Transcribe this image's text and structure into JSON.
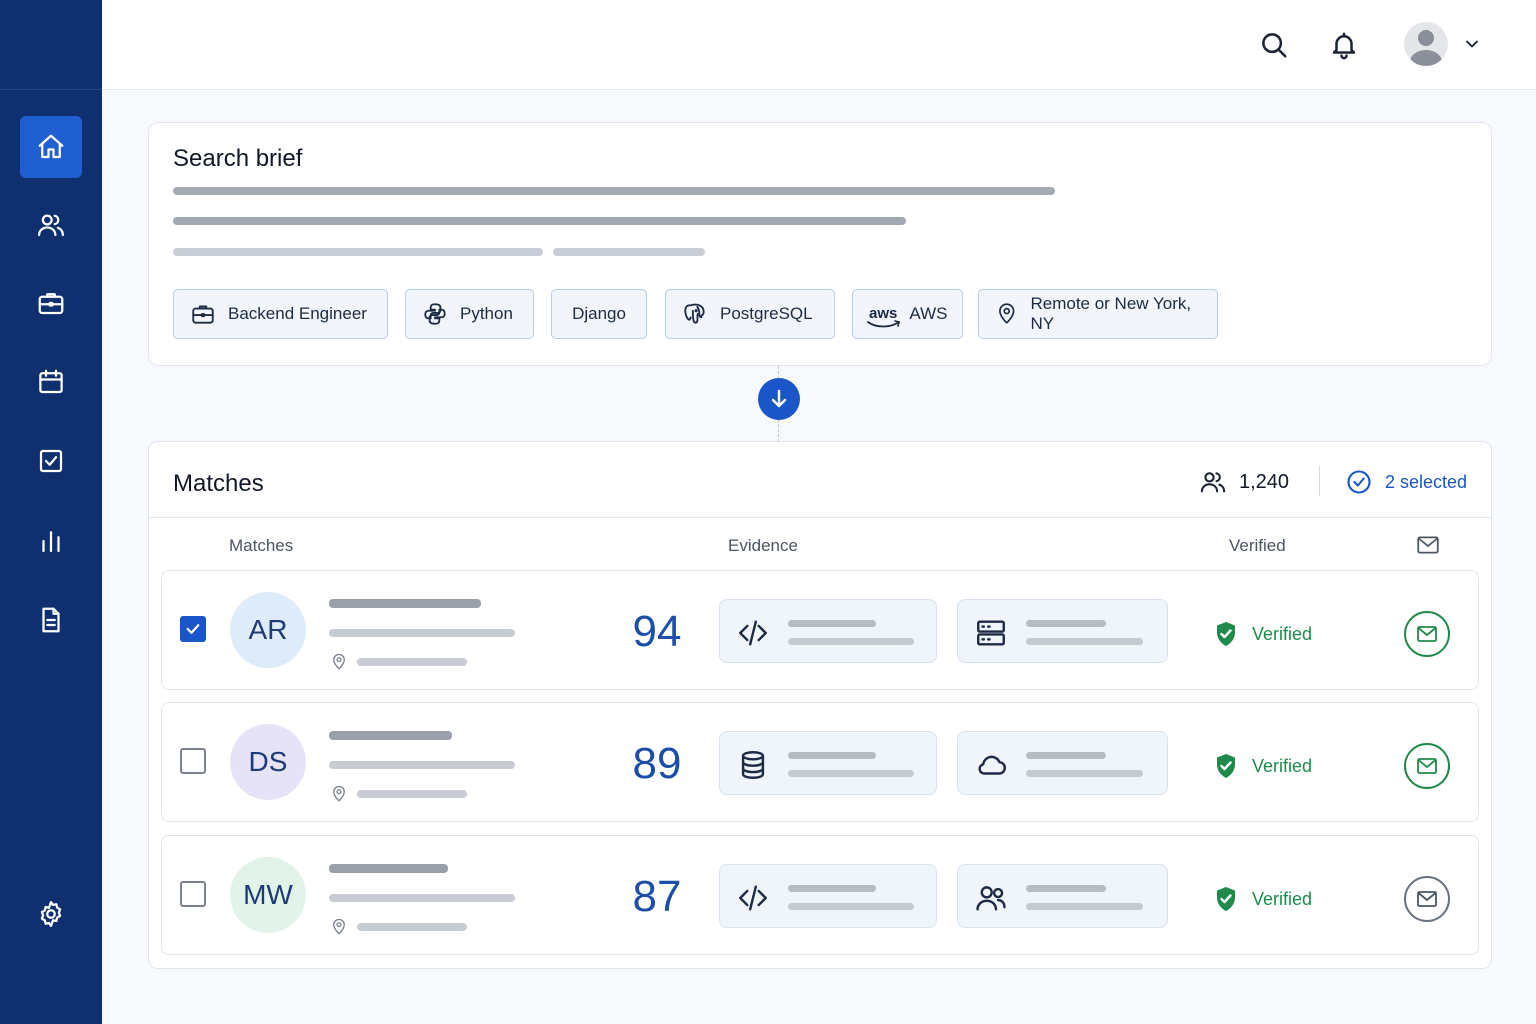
{
  "sidebar": {
    "items": [
      {
        "name": "home",
        "icon": "home-icon",
        "active": true
      },
      {
        "name": "candidates",
        "icon": "users-icon",
        "active": false
      },
      {
        "name": "jobs",
        "icon": "briefcase-icon",
        "active": false
      },
      {
        "name": "calendar",
        "icon": "calendar-icon",
        "active": false
      },
      {
        "name": "tasks",
        "icon": "checkbox-icon",
        "active": false
      },
      {
        "name": "analytics",
        "icon": "bar-chart-icon",
        "active": false
      },
      {
        "name": "documents",
        "icon": "document-icon",
        "active": false
      },
      {
        "name": "settings",
        "icon": "gear-icon",
        "active": false
      }
    ]
  },
  "header": {
    "icons": [
      "search-icon",
      "bell-icon",
      "avatar",
      "chevron-down-icon"
    ]
  },
  "brief": {
    "title": "Search brief",
    "chips": [
      {
        "label": "Backend Engineer",
        "icon": "briefcase-icon"
      },
      {
        "label": "Python",
        "icon": "python-icon"
      },
      {
        "label": "Django",
        "icon": ""
      },
      {
        "label": "PostgreSQL",
        "icon": "postgresql-icon"
      },
      {
        "label": "AWS",
        "icon": "aws-icon",
        "logo_text": "aws"
      },
      {
        "label": "Remote or New York, NY",
        "icon": "location-pin-icon"
      }
    ]
  },
  "matches": {
    "title": "Matches",
    "total": "1,240",
    "selected": "2 selected",
    "columns": {
      "matches": "Matches",
      "evidence": "Evidence",
      "verified": "Verified"
    },
    "rows": [
      {
        "initials": "AR",
        "score": "94",
        "checked": true,
        "avatar_bg": "#deebfa",
        "evidence_icons": [
          "code-icon",
          "server-icon"
        ],
        "verified": "Verified",
        "mail_active": true
      },
      {
        "initials": "DS",
        "score": "89",
        "checked": false,
        "avatar_bg": "#e6e2f7",
        "evidence_icons": [
          "database-icon",
          "cloud-icon"
        ],
        "verified": "Verified",
        "mail_active": true
      },
      {
        "initials": "MW",
        "score": "87",
        "checked": false,
        "avatar_bg": "#e2f3ea",
        "evidence_icons": [
          "code-icon",
          "team-icon"
        ],
        "verified": "Verified",
        "mail_active": false
      }
    ]
  },
  "colors": {
    "sidebar": "#0f2f6e",
    "accent": "#1a56c7",
    "success": "#1f8a4c",
    "score": "#1c4fa8"
  }
}
